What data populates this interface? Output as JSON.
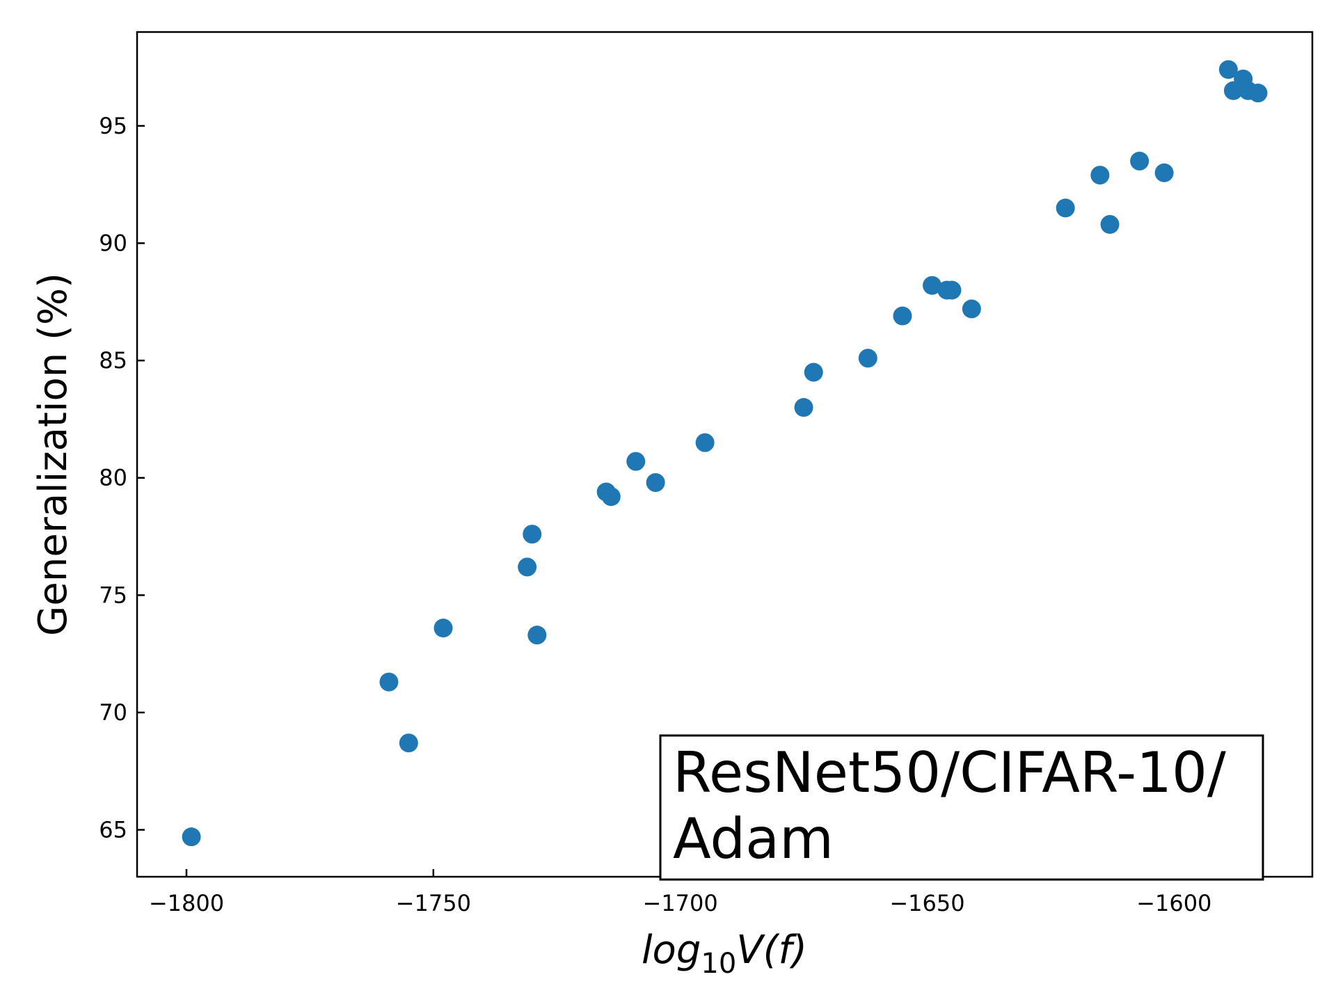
{
  "chart_data": {
    "type": "scatter",
    "xlabel": {
      "base": "log",
      "subscript": "10",
      "rest": "V(f)"
    },
    "ylabel": "Generalization (%)",
    "xlim": [
      -1810,
      -1572
    ],
    "ylim": [
      63,
      99
    ],
    "xticks": [
      -1800,
      -1750,
      -1700,
      -1650,
      -1600
    ],
    "xtick_labels": [
      "−1800",
      "−1750",
      "−1700",
      "−1650",
      "−1600"
    ],
    "yticks": [
      65,
      70,
      75,
      80,
      85,
      90,
      95
    ],
    "ytick_labels": [
      "65",
      "70",
      "75",
      "80",
      "85",
      "90",
      "95"
    ],
    "grid": false,
    "annotation": {
      "lines": [
        "ResNet50/CIFAR-10/",
        "Adam"
      ],
      "placement": "bottom-right"
    },
    "marker_color": "#1f77b4",
    "series": [
      {
        "name": "runs",
        "x": [
          -1799,
          -1759,
          -1755,
          -1748,
          -1731,
          -1730,
          -1729,
          -1715,
          -1714,
          -1709,
          -1705,
          -1695,
          -1675,
          -1673,
          -1662,
          -1655,
          -1649,
          -1646,
          -1645,
          -1641,
          -1622,
          -1615,
          -1613,
          -1607,
          -1602,
          -1589,
          -1588,
          -1586,
          -1585,
          -1583
        ],
        "y": [
          64.7,
          71.3,
          68.7,
          73.6,
          76.2,
          77.6,
          73.3,
          79.4,
          79.2,
          80.7,
          79.8,
          81.5,
          83.0,
          84.5,
          85.1,
          86.9,
          88.2,
          88.0,
          88.0,
          87.2,
          91.5,
          92.9,
          90.8,
          93.5,
          93.0,
          97.4,
          96.5,
          97.0,
          96.5,
          96.4
        ]
      }
    ]
  }
}
